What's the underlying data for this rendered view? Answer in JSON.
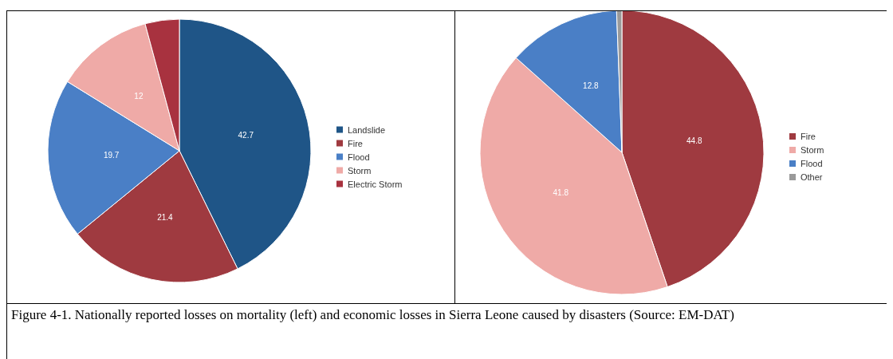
{
  "chart_data": [
    {
      "type": "pie",
      "categories": [
        "Landslide",
        "Fire",
        "Flood",
        "Storm",
        "Electric Storm"
      ],
      "values": [
        42.7,
        21.4,
        19.7,
        12,
        4.2
      ],
      "colors": [
        "#1f5587",
        "#9f3a40",
        "#4a7fc6",
        "#efaaa7",
        "#a8323f"
      ],
      "value_labels": [
        "42.7",
        "21.4",
        "19.7",
        "12",
        null
      ],
      "legend": "right",
      "annotations": [
        "Figure 4-1. Nationally reported losses on mortality (left) and economic losses in Sierra Leone caused by disasters (Source: EM-DAT)"
      ]
    },
    {
      "type": "pie",
      "categories": [
        "Fire",
        "Storm",
        "Flood",
        "Other"
      ],
      "values": [
        44.8,
        41.8,
        12.8,
        0.6
      ],
      "colors": [
        "#9f3a40",
        "#efaaa7",
        "#4a7fc6",
        "#9a9a9a"
      ],
      "value_labels": [
        "44.8",
        "41.8",
        "12.8",
        null
      ],
      "legend": "right"
    }
  ]
}
